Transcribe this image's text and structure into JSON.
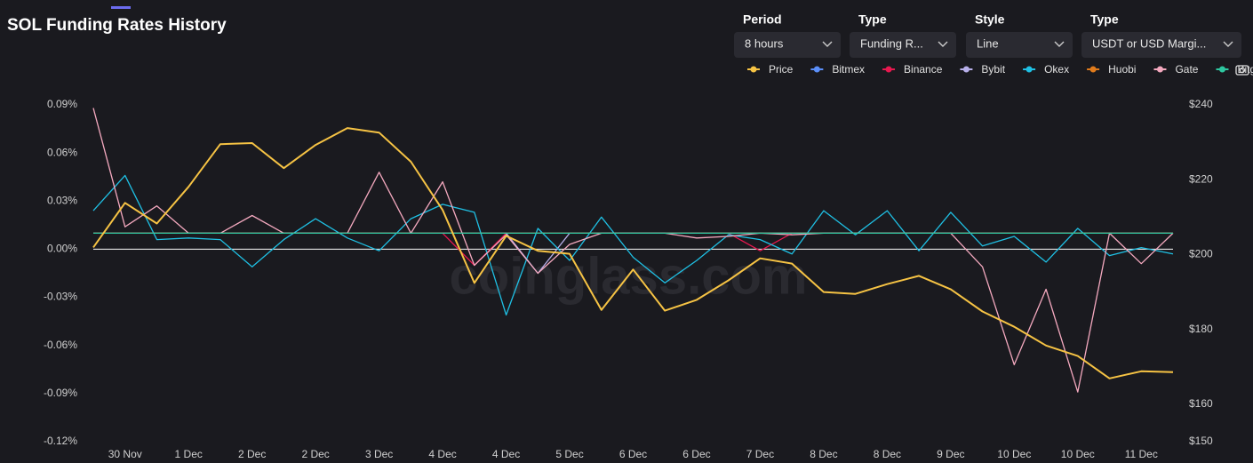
{
  "header": {
    "title": "SOL Funding Rates History",
    "watermark": "coinglass.com"
  },
  "controls": [
    {
      "label": "Period",
      "value": "8 hours"
    },
    {
      "label": "Type",
      "value": "Funding R..."
    },
    {
      "label": "Style",
      "value": "Line"
    },
    {
      "label": "Type",
      "value": "USDT or USD Margi..."
    }
  ],
  "chart_data": {
    "type": "line",
    "categories": [
      null,
      "30 Nov",
      null,
      "1 Dec",
      null,
      "2 Dec",
      null,
      "2 Dec",
      null,
      "3 Dec",
      null,
      "4 Dec",
      null,
      "4 Dec",
      null,
      "5 Dec",
      null,
      "6 Dec",
      null,
      "6 Dec",
      null,
      "7 Dec",
      null,
      "8 Dec",
      null,
      "8 Dec",
      null,
      "9 Dec",
      null,
      "10 Dec",
      null,
      "10 Dec",
      null,
      "11 Dec",
      null
    ],
    "ylim": [
      -0.12,
      0.09
    ],
    "yticks": [
      {
        "value": 0.09,
        "label": "0.09%"
      },
      {
        "value": 0.06,
        "label": "0.06%"
      },
      {
        "value": 0.03,
        "label": "0.03%"
      },
      {
        "value": 0,
        "label": "0.00%"
      },
      {
        "value": -0.03,
        "label": "-0.03%"
      },
      {
        "value": -0.06,
        "label": "-0.06%"
      },
      {
        "value": -0.09,
        "label": "-0.09%"
      },
      {
        "value": -0.12,
        "label": "-0.12%"
      }
    ],
    "y2lim": [
      150,
      240
    ],
    "y2ticks": [
      {
        "value": 240,
        "label": "$240"
      },
      {
        "value": 220,
        "label": "$220"
      },
      {
        "value": 200,
        "label": "$200"
      },
      {
        "value": 180,
        "label": "$180"
      },
      {
        "value": 160,
        "label": "$160"
      },
      {
        "value": 150,
        "label": "$150"
      }
    ],
    "grid": false,
    "zero_line": true,
    "series": [
      {
        "name": "Price",
        "color": "#f6c344",
        "axis": "y2",
        "values": [
          201.9,
          213.8,
          208.3,
          218.1,
          229.5,
          229.8,
          223.1,
          229.3,
          233.8,
          232.6,
          224.8,
          211.9,
          192.4,
          205,
          201,
          200.2,
          185.2,
          196,
          185,
          187.9,
          193.1,
          199,
          197.6,
          190,
          189.5,
          192.1,
          194.3,
          190.7,
          184.8,
          180.7,
          175.7,
          172.9,
          166.9,
          168.8,
          168.6
        ]
      },
      {
        "name": "Bitmex",
        "color": "#5b8ff9",
        "values": [
          0.01,
          0.01,
          0.01,
          0.01,
          0.01,
          0.01,
          0.01,
          0.01,
          0.01,
          0.01,
          0.01,
          0.01,
          0.01,
          0.01,
          0.01,
          0.01,
          0.01,
          0.01,
          0.01,
          0.01,
          0.01,
          0.01,
          0.01,
          0.01,
          0.01,
          0.01,
          0.01,
          0.01,
          0.01,
          0.01,
          0.01,
          0.01,
          0.01,
          0.01,
          0.01
        ]
      },
      {
        "name": "Binance",
        "color": "#e8184f",
        "values": [
          0.01,
          0.01,
          0.01,
          0.01,
          0.01,
          0.01,
          0.01,
          0.01,
          0.01,
          0.01,
          0.01,
          0.01,
          -0.01,
          0.01,
          0.01,
          0.01,
          0.01,
          0.01,
          0.01,
          0.01,
          0.01,
          -0.001,
          0.01,
          0.01,
          0.01,
          0.01,
          0.01,
          0.01,
          0.01,
          0.01,
          0.01,
          0.01,
          0.01,
          0.01,
          0.01
        ]
      },
      {
        "name": "Bybit",
        "color": "#b8b0ea",
        "values": [
          0.01,
          0.01,
          0.01,
          0.01,
          0.01,
          0.01,
          0.01,
          0.01,
          0.01,
          0.01,
          0.01,
          0.01,
          0.01,
          0.01,
          -0.015,
          0.01,
          0.01,
          0.01,
          0.01,
          0.01,
          0.01,
          0.01,
          0.01,
          0.01,
          0.01,
          0.01,
          0.01,
          0.01,
          0.01,
          0.01,
          0.01,
          0.01,
          0.01,
          0.01,
          0.01
        ]
      },
      {
        "name": "Okex",
        "color": "#1fc0e4",
        "values": [
          0.024,
          0.046,
          0.006,
          0.007,
          0.006,
          -0.011,
          0.006,
          0.019,
          0.007,
          -0.001,
          0.019,
          0.028,
          0.023,
          -0.041,
          0.013,
          -0.007,
          0.02,
          -0.005,
          -0.021,
          -0.007,
          0.009,
          0.006,
          -0.003,
          0.024,
          0.009,
          0.024,
          -0.001,
          0.023,
          0.002,
          0.008,
          -0.008,
          0.013,
          -0.004,
          0.001,
          -0.003
        ]
      },
      {
        "name": "Huobi",
        "color": "#e07b1c",
        "values": [
          0.01,
          0.01,
          0.01,
          0.01,
          0.01,
          0.01,
          0.01,
          0.01,
          0.01,
          0.01,
          0.01,
          0.01,
          0.01,
          0.01,
          0.01,
          0.01,
          0.01,
          0.01,
          0.01,
          0.01,
          0.01,
          0.01,
          0.01,
          0.01,
          0.01,
          0.01,
          0.01,
          0.01,
          0.01,
          0.01,
          0.01,
          0.01,
          0.01,
          0.01,
          0.01
        ]
      },
      {
        "name": "Gate",
        "color": "#f4a9bf",
        "values": [
          0.088,
          0.014,
          0.027,
          0.01,
          0.01,
          0.021,
          0.01,
          0.01,
          0.01,
          0.048,
          0.01,
          0.042,
          -0.01,
          0.009,
          -0.015,
          0.003,
          0.01,
          0.01,
          0.01,
          0.007,
          0.008,
          0.01,
          0.009,
          0.01,
          0.01,
          0.01,
          0.01,
          0.01,
          -0.011,
          -0.072,
          -0.025,
          -0.089,
          0.01,
          -0.009,
          0.01
        ]
      },
      {
        "name": "Bitget",
        "color": "#2ec7a0",
        "values": [
          0.01,
          0.01,
          0.01,
          0.01,
          0.01,
          0.01,
          0.01,
          0.01,
          0.01,
          0.01,
          0.01,
          0.01,
          0.01,
          0.01,
          0.01,
          0.01,
          0.01,
          0.01,
          0.01,
          0.01,
          0.01,
          0.01,
          0.01,
          0.01,
          0.01,
          0.01,
          0.01,
          0.01,
          0.01,
          0.01,
          0.01,
          0.01,
          0.01,
          0.01,
          0.01
        ]
      }
    ]
  }
}
